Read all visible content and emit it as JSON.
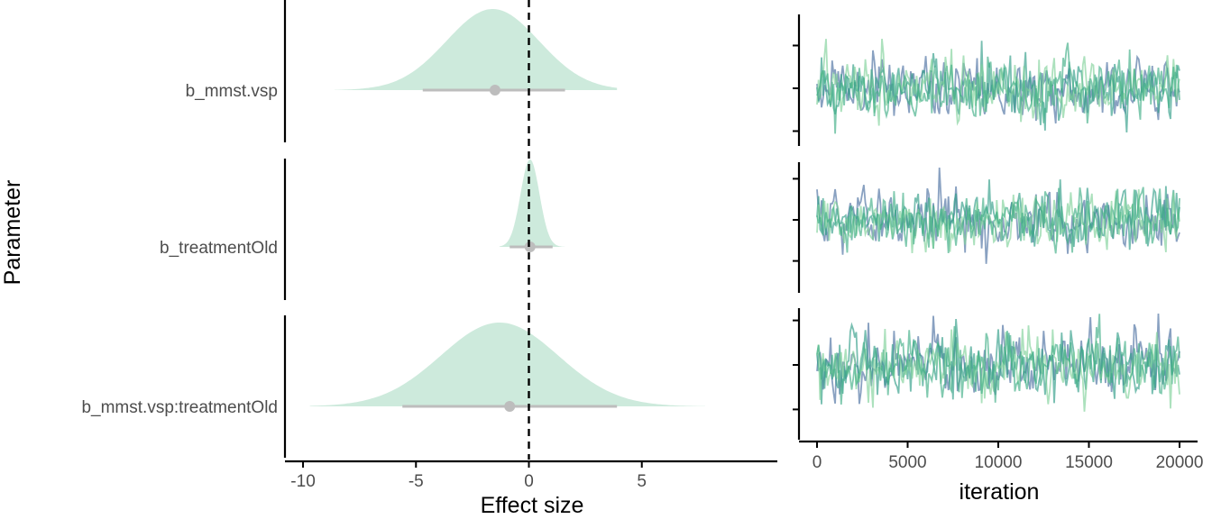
{
  "chart_data": [
    {
      "type": "area",
      "ylabel": "Parameter",
      "xlabel": "Effect size",
      "xlim": [
        -10.8,
        11
      ],
      "xticks": [
        -10,
        -5,
        0,
        5
      ],
      "xtick_labels": [
        "-10",
        "-5",
        "0",
        "5"
      ],
      "reference_line": 0,
      "grid": false,
      "colors": {
        "density": "#cdeadc",
        "interval": "#bdbdbd",
        "point": "#bdbdbd",
        "reference": "#000000"
      },
      "series": [
        {
          "name": "b_mmst.vsp",
          "median": -1.5,
          "interval": [
            -4.7,
            1.6
          ],
          "mean": -1.6,
          "sd": 2.05,
          "range": [
            -8.6,
            3.9
          ]
        },
        {
          "name": "b_treatmentOld",
          "median": 0.05,
          "interval": [
            -0.85,
            1.05
          ],
          "mean": 0.05,
          "sd": 0.42,
          "range": [
            -1.3,
            1.6
          ]
        },
        {
          "name": "b_mmst.vsp:treatmentOld",
          "median": -0.85,
          "interval": [
            -5.6,
            3.9
          ],
          "mean": -1.3,
          "sd": 2.6,
          "range": [
            -9.7,
            7.8
          ]
        }
      ]
    },
    {
      "type": "line",
      "xlabel": "iteration",
      "xlim": [
        0,
        20000
      ],
      "xticks": [
        0,
        5000,
        10000,
        15000,
        20000
      ],
      "xtick_labels": [
        "0",
        "5000",
        "10000",
        "15000",
        "20000"
      ],
      "grid": false,
      "chain_colors": [
        "#4a6fa0",
        "#2f9c87",
        "#7fd19a",
        "#3fae85"
      ],
      "series": [
        {
          "name": "b_mmst.vsp",
          "center": -1.5,
          "spread": 2.0
        },
        {
          "name": "b_treatmentOld",
          "center": 0.05,
          "spread": 0.42
        },
        {
          "name": "b_mmst.vsp:treatmentOld",
          "center": -0.85,
          "spread": 2.4
        }
      ]
    }
  ]
}
